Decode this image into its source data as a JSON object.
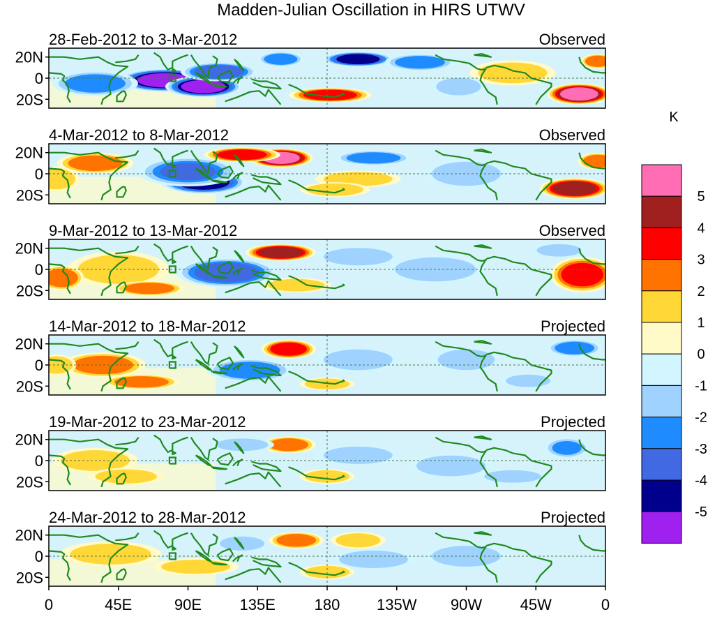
{
  "title": "Madden-Julian Oscillation in HIRS UTWV",
  "units_label": "K",
  "lat_labels": [
    "20N",
    "0",
    "20S"
  ],
  "lon_labels": [
    "0",
    "45E",
    "90E",
    "135E",
    "180",
    "135W",
    "90W",
    "45W",
    "0"
  ],
  "colors": {
    "land_outline": "#1e8a1e",
    "frame": "#000000",
    "background": "#ffffff"
  },
  "colorbar": {
    "tick_labels": [
      "5",
      "4",
      "3",
      "2",
      "1",
      "0",
      "-1",
      "-2",
      "-3",
      "-4",
      "-5"
    ],
    "bins": [
      {
        "range": "> 5",
        "color": "#ff6eb4"
      },
      {
        "range": "4 to 5",
        "color": "#a02020"
      },
      {
        "range": "3 to 4",
        "color": "#ff0000"
      },
      {
        "range": "2 to 3",
        "color": "#ff7300"
      },
      {
        "range": "1 to 2",
        "color": "#ffd737"
      },
      {
        "range": "0 to 1",
        "color": "#fffac8"
      },
      {
        "range": "-1 to 0",
        "color": "#d2f5ff"
      },
      {
        "range": "-2 to -1",
        "color": "#a0d2ff"
      },
      {
        "range": "-3 to -2",
        "color": "#1e8cff"
      },
      {
        "range": "-4 to -3",
        "color": "#4169e1"
      },
      {
        "range": "-5 to -4",
        "color": "#00008c"
      },
      {
        "range": "< -5",
        "color": "#a020f0"
      }
    ]
  },
  "panels": [
    {
      "date_range": "28-Feb-2012 to 3-Mar-2012",
      "kind": "Observed",
      "anomalies": [
        {
          "lon": 75,
          "lat": -2,
          "value": -5.5,
          "rlon": 28,
          "rlat": 9
        },
        {
          "lon": 100,
          "lat": -8,
          "value": -5.5,
          "rlon": 22,
          "rlat": 8
        },
        {
          "lon": 110,
          "lat": 6,
          "value": -3.5,
          "rlon": 22,
          "rlat": 7
        },
        {
          "lon": 30,
          "lat": -5,
          "value": -2.5,
          "rlon": 25,
          "rlat": 10
        },
        {
          "lon": 200,
          "lat": 18,
          "value": -4.2,
          "rlon": 20,
          "rlat": 5
        },
        {
          "lon": 240,
          "lat": 15,
          "value": -2.2,
          "rlon": 20,
          "rlat": 6
        },
        {
          "lon": 150,
          "lat": 18,
          "value": -2.2,
          "rlon": 12,
          "rlat": 5
        },
        {
          "lon": 182,
          "lat": -16,
          "value": 3.2,
          "rlon": 24,
          "rlat": 5
        },
        {
          "lon": 343,
          "lat": -15,
          "value": 5.5,
          "rlon": 18,
          "rlat": 8
        },
        {
          "lon": 355,
          "lat": 16,
          "value": 2.6,
          "rlon": 8,
          "rlat": 5
        },
        {
          "lon": 300,
          "lat": 5,
          "value": 1.4,
          "rlon": 25,
          "rlat": 10
        },
        {
          "lon": 265,
          "lat": -8,
          "value": -1.5,
          "rlon": 15,
          "rlat": 8
        }
      ]
    },
    {
      "date_range": "4-Mar-2012 to 8-Mar-2012",
      "kind": "Observed",
      "anomalies": [
        {
          "lon": 100,
          "lat": -8,
          "value": -4.5,
          "rlon": 25,
          "rlat": 9
        },
        {
          "lon": 90,
          "lat": 2,
          "value": -3.0,
          "rlon": 30,
          "rlat": 12
        },
        {
          "lon": 150,
          "lat": 15,
          "value": 5.2,
          "rlon": 18,
          "rlat": 7
        },
        {
          "lon": 125,
          "lat": 18,
          "value": 3.4,
          "rlon": 22,
          "rlat": 5
        },
        {
          "lon": 30,
          "lat": 10,
          "value": 2.2,
          "rlon": 22,
          "rlat": 8
        },
        {
          "lon": 5,
          "lat": -5,
          "value": 1.6,
          "rlon": 12,
          "rlat": 10
        },
        {
          "lon": 210,
          "lat": 15,
          "value": -2.4,
          "rlon": 22,
          "rlat": 5
        },
        {
          "lon": 340,
          "lat": -14,
          "value": 4.8,
          "rlon": 20,
          "rlat": 8
        },
        {
          "lon": 355,
          "lat": 12,
          "value": 2.2,
          "rlon": 10,
          "rlat": 6
        },
        {
          "lon": 200,
          "lat": -5,
          "value": 1.3,
          "rlon": 25,
          "rlat": 6
        },
        {
          "lon": 270,
          "lat": 0,
          "value": -1.5,
          "rlon": 25,
          "rlat": 12
        },
        {
          "lon": 185,
          "lat": -15,
          "value": 1.6,
          "rlon": 20,
          "rlat": 5
        }
      ]
    },
    {
      "date_range": "9-Mar-2012 to 13-Mar-2012",
      "kind": "Observed",
      "anomalies": [
        {
          "lon": 115,
          "lat": -3,
          "value": -3.6,
          "rlon": 30,
          "rlat": 12
        },
        {
          "lon": 150,
          "lat": 16,
          "value": 4.4,
          "rlon": 20,
          "rlat": 6
        },
        {
          "lon": 45,
          "lat": 0,
          "value": 1.6,
          "rlon": 30,
          "rlat": 15
        },
        {
          "lon": 8,
          "lat": -8,
          "value": 2.8,
          "rlon": 12,
          "rlat": 10
        },
        {
          "lon": 65,
          "lat": -18,
          "value": 2.6,
          "rlon": 20,
          "rlat": 5
        },
        {
          "lon": 345,
          "lat": -5,
          "value": 3.6,
          "rlon": 18,
          "rlat": 15
        },
        {
          "lon": 200,
          "lat": 12,
          "value": -1.4,
          "rlon": 25,
          "rlat": 8
        },
        {
          "lon": 250,
          "lat": 0,
          "value": -1.5,
          "rlon": 30,
          "rlat": 12
        },
        {
          "lon": 160,
          "lat": -15,
          "value": 1.5,
          "rlon": 20,
          "rlat": 5
        },
        {
          "lon": 330,
          "lat": 18,
          "value": -1.8,
          "rlon": 15,
          "rlat": 5
        }
      ]
    },
    {
      "date_range": "14-Mar-2012 to 18-Mar-2012",
      "kind": "Projected",
      "anomalies": [
        {
          "lon": 155,
          "lat": 15,
          "value": 3.8,
          "rlon": 15,
          "rlat": 7
        },
        {
          "lon": 130,
          "lat": -5,
          "value": -2.5,
          "rlon": 25,
          "rlat": 9
        },
        {
          "lon": 35,
          "lat": 0,
          "value": 2.4,
          "rlon": 25,
          "rlat": 10
        },
        {
          "lon": 60,
          "lat": -16,
          "value": 2.4,
          "rlon": 22,
          "rlat": 5
        },
        {
          "lon": 5,
          "lat": 0,
          "value": 2.0,
          "rlon": 10,
          "rlat": 8
        },
        {
          "lon": 200,
          "lat": 5,
          "value": -1.3,
          "rlon": 25,
          "rlat": 10
        },
        {
          "lon": 270,
          "lat": 5,
          "value": -1.5,
          "rlon": 20,
          "rlat": 10
        },
        {
          "lon": 340,
          "lat": 16,
          "value": -2.2,
          "rlon": 15,
          "rlat": 6
        },
        {
          "lon": 310,
          "lat": -15,
          "value": -1.4,
          "rlon": 15,
          "rlat": 5
        },
        {
          "lon": 180,
          "lat": -18,
          "value": 1.6,
          "rlon": 15,
          "rlat": 4
        }
      ]
    },
    {
      "date_range": "19-Mar-2012 to 23-Mar-2012",
      "kind": "Projected",
      "anomalies": [
        {
          "lon": 155,
          "lat": 15,
          "value": 2.5,
          "rlon": 15,
          "rlat": 6
        },
        {
          "lon": 125,
          "lat": 15,
          "value": -1.8,
          "rlon": 18,
          "rlat": 5
        },
        {
          "lon": 30,
          "lat": 0,
          "value": 1.8,
          "rlon": 25,
          "rlat": 10
        },
        {
          "lon": 50,
          "lat": -15,
          "value": 1.6,
          "rlon": 22,
          "rlat": 6
        },
        {
          "lon": 200,
          "lat": 5,
          "value": -1.2,
          "rlon": 25,
          "rlat": 8
        },
        {
          "lon": 260,
          "lat": -5,
          "value": -1.4,
          "rlon": 25,
          "rlat": 10
        },
        {
          "lon": 335,
          "lat": 12,
          "value": -2.0,
          "rlon": 12,
          "rlat": 8
        },
        {
          "lon": 300,
          "lat": -15,
          "value": -1.5,
          "rlon": 20,
          "rlat": 5
        },
        {
          "lon": 180,
          "lat": -15,
          "value": 1.4,
          "rlon": 15,
          "rlat": 5
        }
      ]
    },
    {
      "date_range": "24-Mar-2012 to 28-Mar-2012",
      "kind": "Projected",
      "anomalies": [
        {
          "lon": 160,
          "lat": 15,
          "value": 2.3,
          "rlon": 15,
          "rlat": 6
        },
        {
          "lon": 200,
          "lat": 15,
          "value": 1.3,
          "rlon": 15,
          "rlat": 6
        },
        {
          "lon": 125,
          "lat": 12,
          "value": -1.8,
          "rlon": 15,
          "rlat": 6
        },
        {
          "lon": 40,
          "lat": 2,
          "value": 1.6,
          "rlon": 30,
          "rlat": 10
        },
        {
          "lon": 95,
          "lat": -10,
          "value": 1.3,
          "rlon": 25,
          "rlat": 6
        },
        {
          "lon": 210,
          "lat": -3,
          "value": -1.3,
          "rlon": 25,
          "rlat": 8
        },
        {
          "lon": 270,
          "lat": 0,
          "value": -1.2,
          "rlon": 25,
          "rlat": 10
        },
        {
          "lon": 180,
          "lat": -15,
          "value": 1.3,
          "rlon": 15,
          "rlat": 5
        }
      ]
    }
  ]
}
